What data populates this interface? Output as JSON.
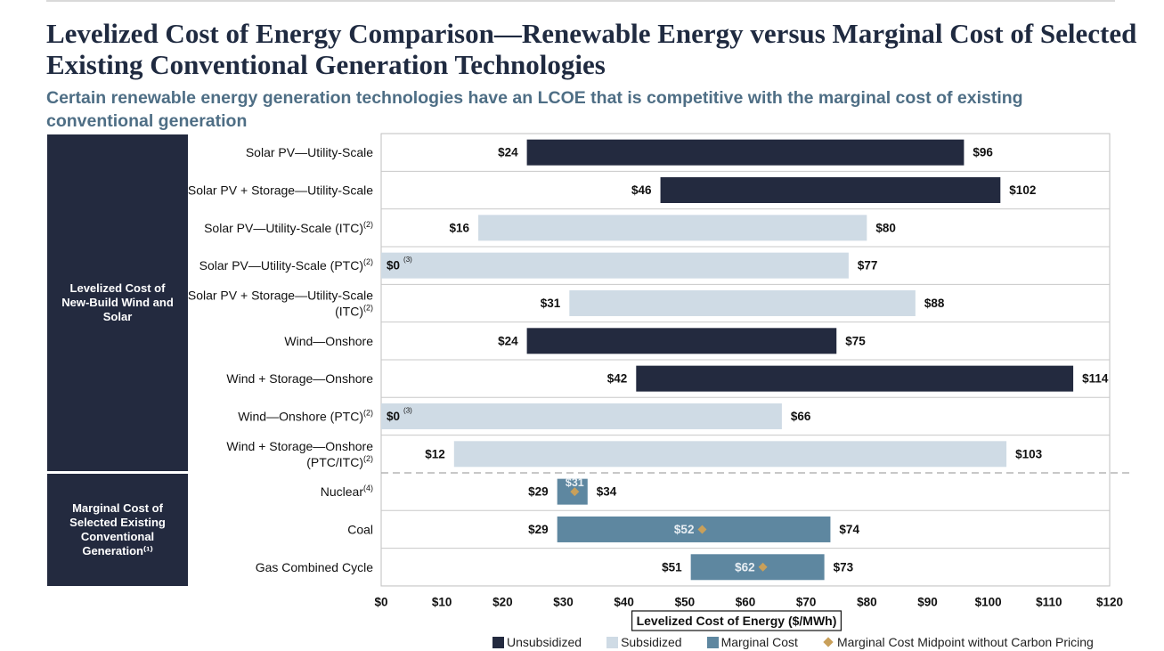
{
  "header": {
    "title": "Levelized Cost of Energy Comparison—Renewable Energy versus Marginal Cost of Selected Existing Conventional Generation Technologies",
    "subtitle": "Certain renewable energy generation technologies have an LCOE that is competitive with the marginal cost of existing conventional generation"
  },
  "groups": [
    {
      "label": "Levelized Cost of New-Build Wind and Solar",
      "rows": 9
    },
    {
      "label": "Marginal Cost of Selected Existing Conventional Generation⁽¹⁾",
      "rows": 3
    }
  ],
  "legend": [
    {
      "label": "Unsubsidized",
      "kind": "unsubsidized"
    },
    {
      "label": "Subsidized",
      "kind": "subsidized"
    },
    {
      "label": "Marginal Cost",
      "kind": "marginal"
    },
    {
      "label": "Marginal Cost Midpoint without Carbon Pricing",
      "kind": "midpoint"
    }
  ],
  "colors": {
    "unsubsidized": "#232a3f",
    "subsidized": "#cfdbe5",
    "marginal": "#5e87a0",
    "midpoint": "#c9a05a"
  },
  "chart_data": {
    "type": "bar",
    "orientation": "horizontal",
    "xlabel": "Levelized Cost of Energy ($/MWh)",
    "xlim": [
      0,
      120
    ],
    "xticks": [
      0,
      10,
      20,
      30,
      40,
      50,
      60,
      70,
      80,
      90,
      100,
      110,
      120
    ],
    "xtick_labels": [
      "$0",
      "$10",
      "$20",
      "$30",
      "$40",
      "$50",
      "$60",
      "$70",
      "$80",
      "$90",
      "$100",
      "$110",
      "$120"
    ],
    "categories": [
      {
        "label": "Solar PV—Utility-Scale",
        "note": ""
      },
      {
        "label": "Solar PV + Storage—Utility-Scale",
        "note": ""
      },
      {
        "label": "Solar PV—Utility-Scale (ITC)",
        "note": "(2)"
      },
      {
        "label": "Solar PV—Utility-Scale (PTC)",
        "note": "(2)"
      },
      {
        "label": "Solar PV + Storage—Utility-Scale",
        "label2": "(ITC)",
        "note": "(2)"
      },
      {
        "label": "Wind—Onshore",
        "note": ""
      },
      {
        "label": "Wind + Storage—Onshore",
        "note": ""
      },
      {
        "label": "Wind—Onshore (PTC)",
        "note": "(2)"
      },
      {
        "label": "Wind + Storage—Onshore",
        "label2": "(PTC/ITC)",
        "note": "(2)"
      },
      {
        "label": "Nuclear",
        "note": "(4)"
      },
      {
        "label": "Coal",
        "note": ""
      },
      {
        "label": "Gas Combined Cycle",
        "note": ""
      }
    ],
    "series": [
      {
        "name": "Unsubsidized",
        "rows": [
          {
            "row": 0,
            "low": 24,
            "high": 96,
            "low_label": "$24",
            "high_label": "$96"
          },
          {
            "row": 1,
            "low": 46,
            "high": 102,
            "low_label": "$46",
            "high_label": "$102"
          },
          {
            "row": 5,
            "low": 24,
            "high": 75,
            "low_label": "$24",
            "high_label": "$75"
          },
          {
            "row": 6,
            "low": 42,
            "high": 114,
            "low_label": "$42",
            "high_label": "$114"
          }
        ]
      },
      {
        "name": "Subsidized",
        "rows": [
          {
            "row": 2,
            "low": 16,
            "high": 80,
            "low_label": "$16",
            "high_label": "$80"
          },
          {
            "row": 3,
            "low": 0,
            "high": 77,
            "low_label": "$0",
            "low_note": "(3)",
            "high_label": "$77"
          },
          {
            "row": 4,
            "low": 31,
            "high": 88,
            "low_label": "$31",
            "high_label": "$88"
          },
          {
            "row": 7,
            "low": 0,
            "high": 66,
            "low_label": "$0",
            "low_note": "(3)",
            "high_label": "$66"
          },
          {
            "row": 8,
            "low": 12,
            "high": 103,
            "low_label": "$12",
            "high_label": "$103"
          }
        ]
      },
      {
        "name": "Marginal Cost",
        "rows": [
          {
            "row": 9,
            "low": 29,
            "high": 34,
            "low_label": "$29",
            "high_label": "$34"
          },
          {
            "row": 10,
            "low": 29,
            "high": 74,
            "low_label": "$29",
            "high_label": "$74"
          },
          {
            "row": 11,
            "low": 51,
            "high": 73,
            "low_label": "$51",
            "high_label": "$73"
          }
        ]
      },
      {
        "name": "Marginal Cost Midpoint without Carbon Pricing",
        "rows": [
          {
            "row": 9,
            "value": 31,
            "label": "$31"
          },
          {
            "row": 10,
            "value": 52,
            "label": "$52"
          },
          {
            "row": 11,
            "value": 62,
            "label": "$62"
          }
        ]
      }
    ],
    "grid": false,
    "legend_position": "bottom"
  }
}
